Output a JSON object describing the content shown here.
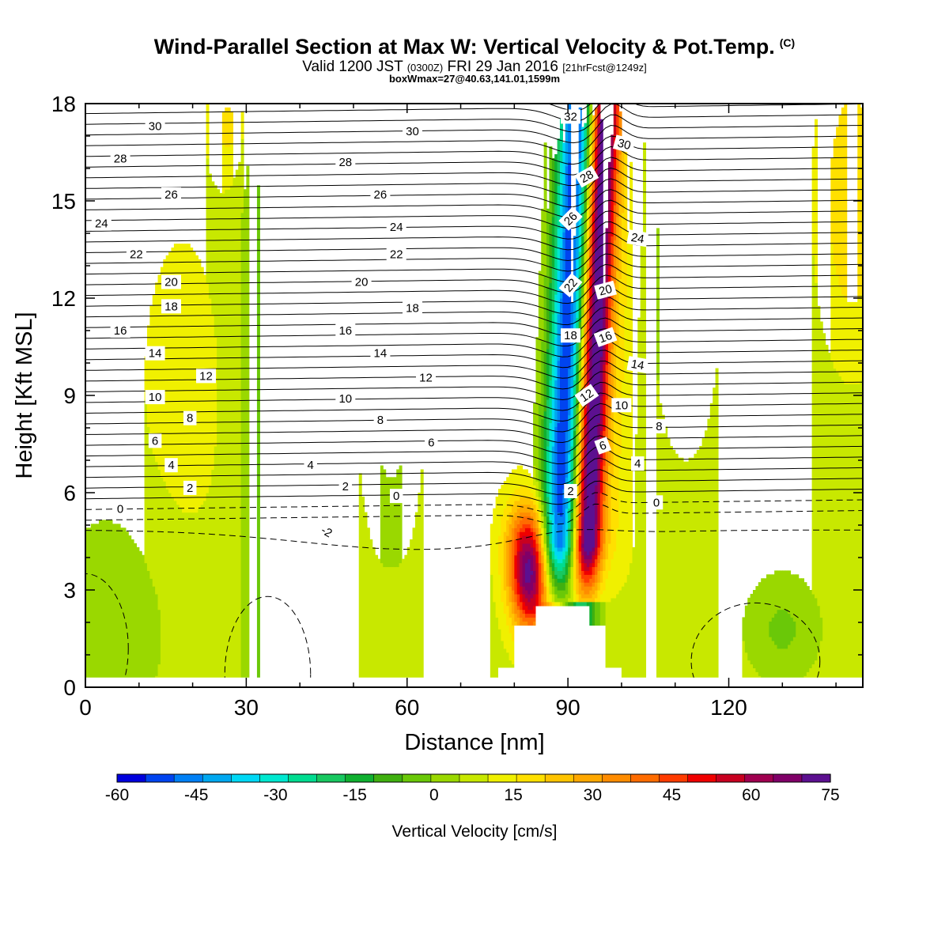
{
  "header": {
    "title": "Wind-Parallel Section at Max W: Vertical Velocity & Pot.Temp.",
    "copyright": "(C)",
    "valid_prefix": "Valid 1200 JST",
    "valid_z": "(0300Z)",
    "valid_date": "FRI 29 Jan 2016",
    "forecast": "[21hrFcst@1249z]",
    "box_info": "boxWmax=27@40.63,141.01,1599m"
  },
  "chart_data": {
    "type": "heatmap",
    "xlabel": "Distance [nm]",
    "ylabel": "Height [Kft MSL]",
    "xlim": [
      0,
      145
    ],
    "ylim": [
      0,
      18
    ],
    "x_ticks": [
      0,
      30,
      60,
      90,
      120
    ],
    "y_ticks": [
      0,
      3,
      6,
      9,
      12,
      15,
      18
    ],
    "colorbar": {
      "label": "Vertical Velocity [cm/s]",
      "levels": [
        -60,
        -55,
        -50,
        -45,
        -40,
        -35,
        -30,
        -25,
        -20,
        -15,
        -10,
        -5,
        0,
        5,
        10,
        15,
        20,
        25,
        30,
        35,
        40,
        45,
        50,
        55,
        60,
        65,
        70,
        75
      ],
      "tick_labels": [
        "-60",
        "-45",
        "-30",
        "-15",
        "0",
        "15",
        "30",
        "45",
        "60",
        "75"
      ],
      "colors": [
        "#0000dd",
        "#0044f0",
        "#0080f5",
        "#00a8f0",
        "#00d8f5",
        "#00e8d0",
        "#00dc90",
        "#18c860",
        "#10b030",
        "#40b010",
        "#6ac808",
        "#9ad800",
        "#c8e800",
        "#f0f000",
        "#ffe000",
        "#ffc400",
        "#ffa800",
        "#ff8c00",
        "#ff6c00",
        "#ff3c00",
        "#f00000",
        "#c80020",
        "#a00050",
        "#800068",
        "#5c1090"
      ]
    },
    "terrain": [
      [
        74,
        0
      ],
      [
        74,
        0.3
      ],
      [
        77,
        0.3
      ],
      [
        77,
        0.6
      ],
      [
        80,
        0.6
      ],
      [
        80,
        1.9
      ],
      [
        84,
        1.9
      ],
      [
        84,
        2.5
      ],
      [
        94,
        2.5
      ],
      [
        94,
        1.9
      ],
      [
        97,
        1.9
      ],
      [
        97,
        0.6
      ],
      [
        100,
        0.6
      ],
      [
        100,
        0.3
      ],
      [
        103,
        0.3
      ],
      [
        103,
        0
      ]
    ],
    "theta_contours": {
      "label_values": [
        "-2",
        "0",
        "2",
        "4",
        "6",
        "8",
        "10",
        "12",
        "14",
        "16",
        "18",
        "20",
        "22",
        "24",
        "26",
        "28",
        "30",
        "32"
      ],
      "labels": [
        {
          "text": "30",
          "x": 13,
          "y": 17.3,
          "rot": 0
        },
        {
          "text": "28",
          "x": 6.5,
          "y": 16.3,
          "rot": 0
        },
        {
          "text": "26",
          "x": 16,
          "y": 15.2,
          "rot": 0
        },
        {
          "text": "24",
          "x": 3,
          "y": 14.3,
          "rot": 0
        },
        {
          "text": "22",
          "x": 9.5,
          "y": 13.35,
          "rot": 0
        },
        {
          "text": "20",
          "x": 16,
          "y": 12.5,
          "rot": 0
        },
        {
          "text": "18",
          "x": 16,
          "y": 11.75,
          "rot": 0
        },
        {
          "text": "16",
          "x": 6.5,
          "y": 11.0,
          "rot": 0
        },
        {
          "text": "14",
          "x": 13,
          "y": 10.3,
          "rot": 0
        },
        {
          "text": "12",
          "x": 22.5,
          "y": 9.6,
          "rot": 0
        },
        {
          "text": "10",
          "x": 13,
          "y": 8.95,
          "rot": 0
        },
        {
          "text": "8",
          "x": 19.5,
          "y": 8.3,
          "rot": 0
        },
        {
          "text": "6",
          "x": 13,
          "y": 7.6,
          "rot": 0
        },
        {
          "text": "4",
          "x": 16,
          "y": 6.85,
          "rot": 0
        },
        {
          "text": "2",
          "x": 19.5,
          "y": 6.15,
          "rot": 0
        },
        {
          "text": "0",
          "x": 6.5,
          "y": 5.5,
          "rot": 0
        },
        {
          "text": "30",
          "x": 61,
          "y": 17.15,
          "rot": 0
        },
        {
          "text": "28",
          "x": 48.5,
          "y": 16.2,
          "rot": 0
        },
        {
          "text": "26",
          "x": 55,
          "y": 15.2,
          "rot": 0
        },
        {
          "text": "24",
          "x": 58,
          "y": 14.2,
          "rot": 0
        },
        {
          "text": "22",
          "x": 58,
          "y": 13.35,
          "rot": 0
        },
        {
          "text": "20",
          "x": 51.5,
          "y": 12.5,
          "rot": 0
        },
        {
          "text": "18",
          "x": 61,
          "y": 11.7,
          "rot": 0
        },
        {
          "text": "16",
          "x": 48.5,
          "y": 11.0,
          "rot": 0
        },
        {
          "text": "14",
          "x": 55,
          "y": 10.3,
          "rot": 0
        },
        {
          "text": "12",
          "x": 63.5,
          "y": 9.55,
          "rot": 0
        },
        {
          "text": "10",
          "x": 48.5,
          "y": 8.9,
          "rot": 0
        },
        {
          "text": "8",
          "x": 55,
          "y": 8.25,
          "rot": 0
        },
        {
          "text": "6",
          "x": 64.5,
          "y": 7.55,
          "rot": 0
        },
        {
          "text": "4",
          "x": 42,
          "y": 6.85,
          "rot": 0
        },
        {
          "text": "2",
          "x": 48.5,
          "y": 6.2,
          "rot": 0
        },
        {
          "text": "0",
          "x": 58,
          "y": 5.9,
          "rot": 0
        },
        {
          "text": "-2",
          "x": 45,
          "y": 4.8,
          "rot": 30
        },
        {
          "text": "32",
          "x": 90.5,
          "y": 17.6,
          "rot": 0
        },
        {
          "text": "30",
          "x": 100.5,
          "y": 16.75,
          "rot": 15
        },
        {
          "text": "28",
          "x": 93.5,
          "y": 15.75,
          "rot": -30
        },
        {
          "text": "26",
          "x": 90.5,
          "y": 14.45,
          "rot": -45
        },
        {
          "text": "24",
          "x": 103,
          "y": 13.85,
          "rot": 10
        },
        {
          "text": "22",
          "x": 90.5,
          "y": 12.4,
          "rot": -50
        },
        {
          "text": "20",
          "x": 97,
          "y": 12.25,
          "rot": -15
        },
        {
          "text": "18",
          "x": 90.5,
          "y": 10.85,
          "rot": 0
        },
        {
          "text": "16",
          "x": 97,
          "y": 10.8,
          "rot": -20
        },
        {
          "text": "14",
          "x": 103,
          "y": 9.95,
          "rot": 10
        },
        {
          "text": "12",
          "x": 93.5,
          "y": 9.0,
          "rot": -35
        },
        {
          "text": "10",
          "x": 100,
          "y": 8.7,
          "rot": 0
        },
        {
          "text": "8",
          "x": 107,
          "y": 8.05,
          "rot": 0
        },
        {
          "text": "6",
          "x": 96.5,
          "y": 7.45,
          "rot": -20
        },
        {
          "text": "4",
          "x": 103,
          "y": 6.9,
          "rot": 0
        },
        {
          "text": "2",
          "x": 90.5,
          "y": 6.05,
          "rot": 0
        },
        {
          "text": "0",
          "x": 106.5,
          "y": 5.7,
          "rot": 0
        }
      ]
    }
  }
}
